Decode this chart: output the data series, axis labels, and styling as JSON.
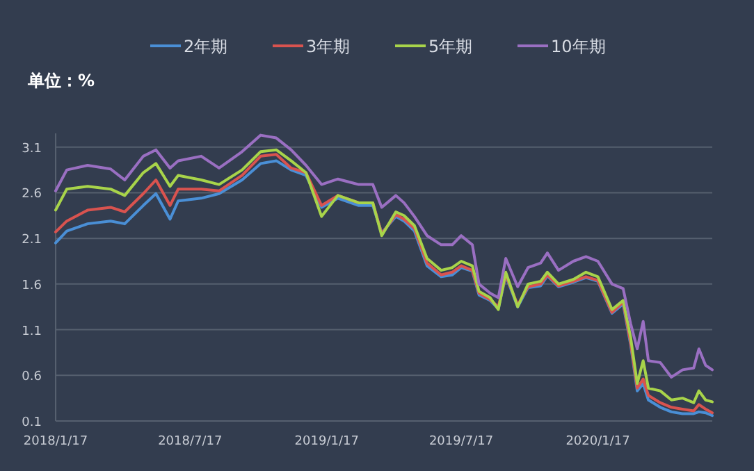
{
  "chart_data": {
    "type": "line",
    "ylabel": "单位：%",
    "legend": "top",
    "grid": "y",
    "line_style": "solid",
    "marker": "none",
    "x": [
      "2018-01-17",
      "2018-02-01",
      "2018-03-01",
      "2018-04-01",
      "2018-04-20",
      "2018-05-15",
      "2018-06-01",
      "2018-06-20",
      "2018-07-01",
      "2018-08-01",
      "2018-08-25",
      "2018-09-25",
      "2018-10-20",
      "2018-11-10",
      "2018-11-30",
      "2018-12-20",
      "2019-01-10",
      "2019-02-01",
      "2019-03-01",
      "2019-03-20",
      "2019-04-01",
      "2019-04-20",
      "2019-05-01",
      "2019-05-15",
      "2019-06-01",
      "2019-06-20",
      "2019-07-05",
      "2019-07-17",
      "2019-08-01",
      "2019-08-10",
      "2019-08-25",
      "2019-09-05",
      "2019-09-15",
      "2019-10-01",
      "2019-10-15",
      "2019-11-01",
      "2019-11-10",
      "2019-11-25",
      "2019-12-15",
      "2020-01-01",
      "2020-01-17",
      "2020-02-05",
      "2020-02-20",
      "2020-03-01",
      "2020-03-10",
      "2020-03-18",
      "2020-03-25",
      "2020-04-10",
      "2020-04-25",
      "2020-05-10",
      "2020-05-25",
      "2020-06-01",
      "2020-06-10",
      "2020-06-19"
    ],
    "xlim": [
      "2018-01-17",
      "2020-06-19"
    ],
    "xticks": [
      {
        "value": "2018-01-17",
        "label": "2018/1/17"
      },
      {
        "value": "2018-07-17",
        "label": "2018/7/17"
      },
      {
        "value": "2019-01-17",
        "label": "2019/1/17"
      },
      {
        "value": "2019-07-17",
        "label": "2019/7/17"
      },
      {
        "value": "2020-01-17",
        "label": "2020/1/17"
      }
    ],
    "ylim": [
      0.1,
      3.25
    ],
    "yticks": [
      0.1,
      0.6,
      1.1,
      1.6,
      2.1,
      2.6,
      3.1
    ],
    "series": [
      {
        "name": "2年期",
        "color": "#4a8fd6",
        "values": [
          2.05,
          2.18,
          2.26,
          2.29,
          2.26,
          2.46,
          2.59,
          2.31,
          2.51,
          2.54,
          2.59,
          2.74,
          2.92,
          2.95,
          2.85,
          2.79,
          2.44,
          2.54,
          2.46,
          2.46,
          2.16,
          2.34,
          2.29,
          2.18,
          1.8,
          1.68,
          1.7,
          1.78,
          1.74,
          1.48,
          1.42,
          1.33,
          1.69,
          1.35,
          1.56,
          1.58,
          1.69,
          1.57,
          1.62,
          1.67,
          1.63,
          1.28,
          1.38,
          0.94,
          0.43,
          0.51,
          0.33,
          0.25,
          0.2,
          0.18,
          0.18,
          0.2,
          0.19,
          0.16
        ]
      },
      {
        "name": "3年期",
        "color": "#d9534f",
        "values": [
          2.17,
          2.29,
          2.41,
          2.44,
          2.39,
          2.59,
          2.74,
          2.46,
          2.64,
          2.64,
          2.62,
          2.79,
          3.0,
          3.02,
          2.87,
          2.82,
          2.46,
          2.57,
          2.49,
          2.49,
          2.15,
          2.36,
          2.31,
          2.21,
          1.83,
          1.7,
          1.73,
          1.8,
          1.75,
          1.5,
          1.43,
          1.35,
          1.7,
          1.37,
          1.57,
          1.6,
          1.7,
          1.58,
          1.63,
          1.68,
          1.64,
          1.29,
          1.4,
          0.96,
          0.46,
          0.56,
          0.38,
          0.3,
          0.25,
          0.23,
          0.21,
          0.28,
          0.23,
          0.19
        ]
      },
      {
        "name": "5年期",
        "color": "#a8d44a",
        "values": [
          2.41,
          2.64,
          2.67,
          2.64,
          2.57,
          2.82,
          2.92,
          2.67,
          2.79,
          2.74,
          2.69,
          2.85,
          3.05,
          3.07,
          2.95,
          2.82,
          2.34,
          2.57,
          2.49,
          2.49,
          2.13,
          2.39,
          2.35,
          2.24,
          1.88,
          1.75,
          1.78,
          1.85,
          1.8,
          1.52,
          1.45,
          1.32,
          1.73,
          1.35,
          1.6,
          1.63,
          1.73,
          1.6,
          1.65,
          1.73,
          1.68,
          1.32,
          1.42,
          1.02,
          0.51,
          0.76,
          0.46,
          0.43,
          0.33,
          0.35,
          0.3,
          0.43,
          0.33,
          0.31
        ]
      },
      {
        "name": "10年期",
        "color": "#9a6fc2",
        "values": [
          2.62,
          2.85,
          2.9,
          2.86,
          2.74,
          3.0,
          3.07,
          2.87,
          2.95,
          3.0,
          2.87,
          3.05,
          3.23,
          3.2,
          3.07,
          2.9,
          2.69,
          2.75,
          2.69,
          2.69,
          2.44,
          2.57,
          2.49,
          2.34,
          2.13,
          2.03,
          2.03,
          2.13,
          2.03,
          1.6,
          1.5,
          1.45,
          1.88,
          1.57,
          1.78,
          1.83,
          1.94,
          1.75,
          1.85,
          1.9,
          1.85,
          1.6,
          1.55,
          1.17,
          0.89,
          1.19,
          0.76,
          0.74,
          0.58,
          0.66,
          0.68,
          0.89,
          0.71,
          0.66
        ]
      }
    ]
  }
}
